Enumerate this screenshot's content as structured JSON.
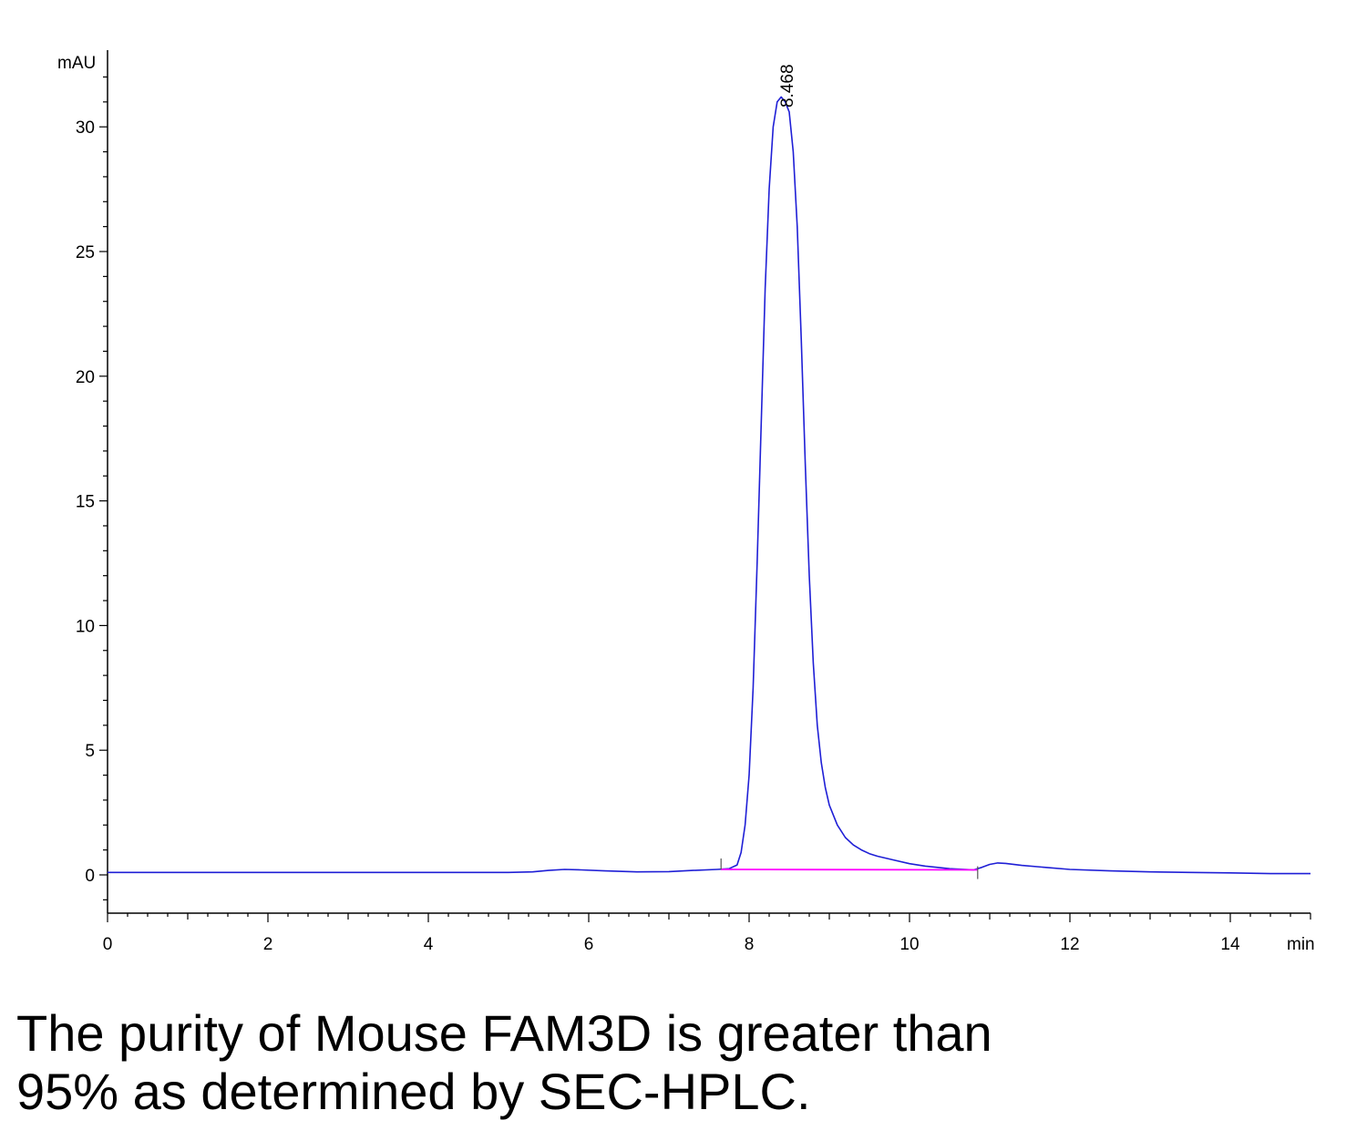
{
  "chart_data": {
    "type": "line",
    "ylabel": "mAU",
    "xlabel": "min",
    "xlim": [
      0,
      15
    ],
    "ylim": [
      -1.5,
      33
    ],
    "x_ticks": [
      0,
      2,
      4,
      6,
      8,
      10,
      12,
      14
    ],
    "y_ticks": [
      0,
      5,
      10,
      15,
      20,
      25,
      30
    ],
    "grid": false,
    "legend": "none",
    "peak_label": "8.468",
    "series": [
      {
        "color": "#1f1fd6",
        "x": [
          0,
          1,
          2,
          3,
          4,
          5,
          5.3,
          5.5,
          5.7,
          5.9,
          6.2,
          6.6,
          7.0,
          7.3,
          7.6,
          7.75,
          7.85,
          7.9,
          7.95,
          8.0,
          8.05,
          8.1,
          8.15,
          8.2,
          8.25,
          8.3,
          8.35,
          8.4,
          8.45,
          8.5,
          8.55,
          8.6,
          8.65,
          8.7,
          8.75,
          8.8,
          8.85,
          8.9,
          8.95,
          9.0,
          9.1,
          9.2,
          9.3,
          9.4,
          9.5,
          9.6,
          9.8,
          10.0,
          10.2,
          10.5,
          10.8,
          10.9,
          11.0,
          11.1,
          11.2,
          11.4,
          11.7,
          12.0,
          12.5,
          13.0,
          13.5,
          14.0,
          14.5,
          15.0
        ],
        "values": [
          0.1,
          0.1,
          0.1,
          0.1,
          0.1,
          0.1,
          0.12,
          0.18,
          0.22,
          0.2,
          0.16,
          0.12,
          0.13,
          0.18,
          0.22,
          0.25,
          0.4,
          0.9,
          2.0,
          4.0,
          7.5,
          12.5,
          18.0,
          23.5,
          27.5,
          30.0,
          31.0,
          31.2,
          31.0,
          30.6,
          29.0,
          26.0,
          21.5,
          16.5,
          12.0,
          8.5,
          6.0,
          4.5,
          3.5,
          2.8,
          2.0,
          1.5,
          1.2,
          1.0,
          0.85,
          0.75,
          0.6,
          0.45,
          0.35,
          0.25,
          0.2,
          0.3,
          0.42,
          0.48,
          0.46,
          0.38,
          0.3,
          0.22,
          0.16,
          0.12,
          0.1,
          0.08,
          0.05,
          0.05
        ]
      },
      {
        "color": "#ff00ff",
        "x": [
          7.65,
          10.85
        ],
        "values": [
          0.22,
          0.2
        ]
      }
    ],
    "integration_markers": [
      7.65,
      10.85
    ]
  },
  "caption": "The purity of Mouse FAM3D is greater than\n95% as determined by SEC-HPLC."
}
